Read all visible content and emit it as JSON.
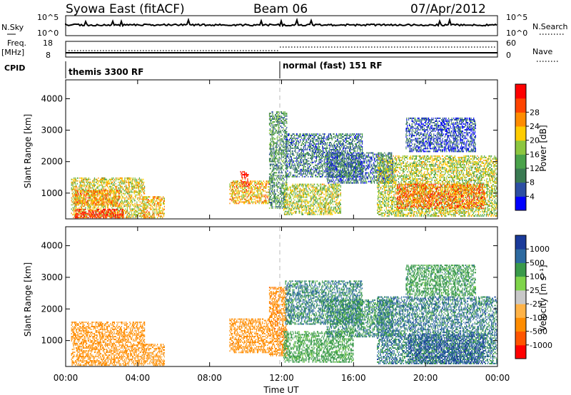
{
  "header": {
    "station": "Syowa East (fitACF)",
    "beam": "Beam 06",
    "date": "07/Apr/2012"
  },
  "status_panels": {
    "nsky_label": "N.Sky",
    "nsky_ticks": [
      "10^5",
      "10^0"
    ],
    "nsearch_label": "N.Search",
    "nsearch_ticks": [
      "10^5",
      "10^0"
    ],
    "freq_label": "Freq.",
    "freq_unit": "[MHz]",
    "freq_ticks": [
      "18",
      "8"
    ],
    "nave_label": "Nave",
    "nave_ticks": [
      "60",
      "0"
    ],
    "cpid_label": "CPID",
    "cpid_modes": [
      {
        "name": "themis 3300 RF",
        "start_hour": 0
      },
      {
        "name": "normal (fast) 151 RF",
        "start_hour": 12
      }
    ]
  },
  "colors": {
    "power_scale": [
      "#0000ff",
      "#2d4fa3",
      "#3a7a52",
      "#4aa24a",
      "#8cc63f",
      "#ffcc00",
      "#ff8c00",
      "#ff4400",
      "#ff0000"
    ],
    "velocity_scale": [
      "#ff0000",
      "#ff5500",
      "#ff8c00",
      "#ffb347",
      "#c8c8c8",
      "#7fd44a",
      "#3a9a4a",
      "#2d6aa0",
      "#1a3a9a"
    ]
  },
  "chart_data": [
    {
      "type": "heatmap",
      "name": "power",
      "ylabel": "Slant Range [km]",
      "xlabel": "",
      "x_ticks": [
        "00:00",
        "04:00",
        "08:00",
        "12:00",
        "16:00",
        "20:00",
        "00:00"
      ],
      "xlim_hours": [
        0,
        24
      ],
      "ylim": [
        180,
        4600
      ],
      "y_ticks": [
        1000,
        2000,
        3000,
        4000
      ],
      "colorbar": {
        "label": "Power [dB]",
        "ticks": [
          4,
          8,
          12,
          16,
          20,
          24,
          28
        ],
        "range": [
          0,
          31
        ]
      },
      "regions": [
        {
          "t0": 0.3,
          "t1": 4.4,
          "r0": 200,
          "r1": 1500,
          "v": 18
        },
        {
          "t0": 0.5,
          "t1": 3.2,
          "r0": 200,
          "r1": 500,
          "v": 28
        },
        {
          "t0": 0.5,
          "t1": 3.0,
          "r0": 600,
          "r1": 1100,
          "v": 22
        },
        {
          "t0": 4.3,
          "t1": 5.5,
          "r0": 200,
          "r1": 900,
          "v": 20
        },
        {
          "t0": 9.1,
          "t1": 11.3,
          "r0": 650,
          "r1": 1400,
          "v": 20
        },
        {
          "t0": 9.7,
          "t1": 10.2,
          "r0": 1200,
          "r1": 1700,
          "v": 28
        },
        {
          "t0": 11.3,
          "t1": 12.3,
          "r0": 500,
          "r1": 3600,
          "v": 10
        },
        {
          "t0": 12.1,
          "t1": 15.3,
          "r0": 300,
          "r1": 1300,
          "v": 16
        },
        {
          "t0": 12.2,
          "t1": 16.5,
          "r0": 1500,
          "r1": 2900,
          "v": 8
        },
        {
          "t0": 14.5,
          "t1": 18.2,
          "r0": 1300,
          "r1": 2300,
          "v": 7
        },
        {
          "t0": 17.3,
          "t1": 24.0,
          "r0": 250,
          "r1": 2200,
          "v": 16
        },
        {
          "t0": 18.4,
          "t1": 23.3,
          "r0": 500,
          "r1": 1300,
          "v": 24
        },
        {
          "t0": 18.9,
          "t1": 22.8,
          "r0": 2300,
          "r1": 3400,
          "v": 5
        }
      ]
    },
    {
      "type": "heatmap",
      "name": "velocity",
      "ylabel": "Slant Range [km]",
      "xlabel": "Time UT",
      "x_ticks": [
        "00:00",
        "04:00",
        "08:00",
        "12:00",
        "16:00",
        "20:00",
        "00:00"
      ],
      "xlim_hours": [
        0,
        24
      ],
      "ylim": [
        180,
        4600
      ],
      "y_ticks": [
        1000,
        2000,
        3000,
        4000
      ],
      "colorbar": {
        "label": "Velocity [m s⁻¹]",
        "ticks": [
          "-1000",
          "-500",
          "-100",
          "-25",
          "25",
          "100",
          "500",
          "1000"
        ]
      },
      "regions": [
        {
          "t0": 0.3,
          "t1": 4.4,
          "r0": 200,
          "r1": 1600,
          "v": -200
        },
        {
          "t0": 4.3,
          "t1": 5.5,
          "r0": 200,
          "r1": 900,
          "v": -150
        },
        {
          "t0": 9.1,
          "t1": 11.3,
          "r0": 600,
          "r1": 1700,
          "v": -250
        },
        {
          "t0": 11.3,
          "t1": 12.3,
          "r0": 500,
          "r1": 2700,
          "v": -300
        },
        {
          "t0": 12.1,
          "t1": 16.0,
          "r0": 300,
          "r1": 1300,
          "v": 200
        },
        {
          "t0": 12.2,
          "t1": 16.5,
          "r0": 1500,
          "r1": 2900,
          "v": 500
        },
        {
          "t0": 14.5,
          "t1": 18.2,
          "r0": 1100,
          "r1": 2300,
          "v": 400
        },
        {
          "t0": 17.3,
          "t1": 24.0,
          "r0": 250,
          "r1": 2400,
          "v": 600
        },
        {
          "t0": 19.0,
          "t1": 23.3,
          "r0": 250,
          "r1": 1200,
          "v": 900
        },
        {
          "t0": 18.9,
          "t1": 22.8,
          "r0": 2400,
          "r1": 3400,
          "v": 300
        }
      ]
    }
  ]
}
